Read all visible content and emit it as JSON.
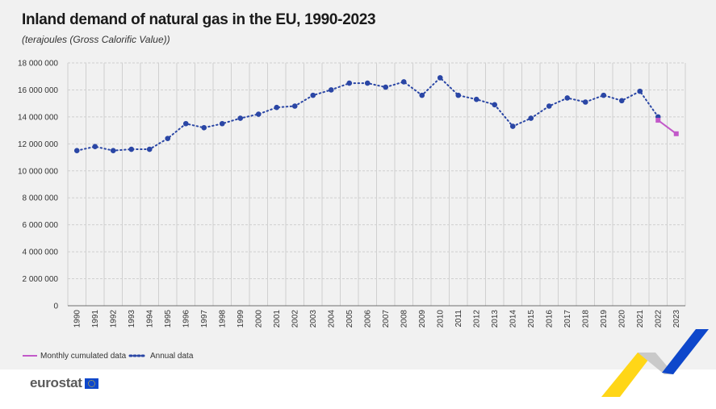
{
  "header": {
    "title": "Inland demand of natural gas in the EU, 1990-2023",
    "subtitle": "(terajoules (Gross Calorific Value))"
  },
  "logo": {
    "text": "eurostat",
    "icon": "eu-flag-icon"
  },
  "colors": {
    "annual": "#2a46a5",
    "monthly": "#c259c9",
    "grid": "#d0d0d0",
    "background": "#f1f1f1",
    "accent_blue": "#0e47cb",
    "accent_yellow": "#ffd617"
  },
  "chart_data": {
    "type": "line",
    "title": "Inland demand of natural gas in the EU, 1990-2023",
    "subtitle": "(terajoules (Gross Calorific Value))",
    "xlabel": "",
    "ylabel": "",
    "ylim": [
      0,
      18000000
    ],
    "y_ticks": [
      0,
      2000000,
      4000000,
      6000000,
      8000000,
      10000000,
      12000000,
      14000000,
      16000000,
      18000000
    ],
    "y_tick_labels": [
      "0",
      "2 000 000",
      "4 000 000",
      "6 000 000",
      "8 000 000",
      "10 000 000",
      "12 000 000",
      "14 000 000",
      "16 000 000",
      "18 000 000"
    ],
    "grid": true,
    "legend_position": "bottom-left",
    "categories": [
      "1990",
      "1991",
      "1992",
      "1993",
      "1994",
      "1995",
      "1996",
      "1997",
      "1998",
      "1999",
      "2000",
      "2001",
      "2002",
      "2003",
      "2004",
      "2005",
      "2006",
      "2007",
      "2008",
      "2009",
      "2010",
      "2011",
      "2012",
      "2013",
      "2014",
      "2015",
      "2016",
      "2017",
      "2018",
      "2019",
      "2020",
      "2021",
      "2022",
      "2023"
    ],
    "series": [
      {
        "name": "Monthly cumulated data",
        "style": "solid",
        "color": "#c259c9",
        "values": [
          null,
          null,
          null,
          null,
          null,
          null,
          null,
          null,
          null,
          null,
          null,
          null,
          null,
          null,
          null,
          null,
          null,
          null,
          null,
          null,
          null,
          null,
          null,
          null,
          null,
          null,
          null,
          null,
          null,
          null,
          null,
          null,
          13750000,
          12750000
        ]
      },
      {
        "name": "Annual data",
        "style": "dotted",
        "color": "#2a46a5",
        "values": [
          11500000,
          11800000,
          11500000,
          11600000,
          11600000,
          12400000,
          13500000,
          13200000,
          13500000,
          13900000,
          14200000,
          14700000,
          14800000,
          15600000,
          16000000,
          16500000,
          16500000,
          16200000,
          16600000,
          15600000,
          16900000,
          15600000,
          15300000,
          14900000,
          13300000,
          13900000,
          14800000,
          15400000,
          15100000,
          15600000,
          15200000,
          15900000,
          14000000,
          null
        ]
      }
    ]
  }
}
